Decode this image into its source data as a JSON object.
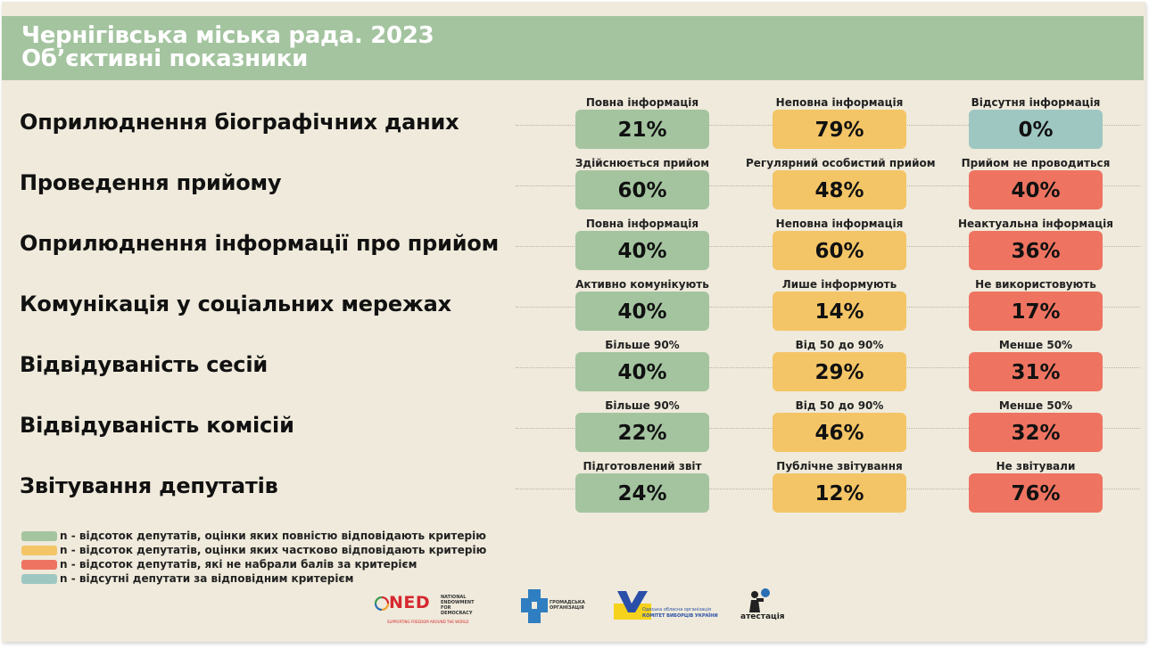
{
  "colors": {
    "full": "#a4c4a0",
    "partial": "#f4c566",
    "none": "#ee7461",
    "absent": "#9fc7c2"
  },
  "header": {
    "title_line1": "Чернігівська міська рада. 2023",
    "title_line2": "Об’єктивні показники"
  },
  "rows": [
    {
      "label": "Оприлюднення біографічних даних",
      "cells": [
        {
          "category": "Повна інформація",
          "value": "21%",
          "color": "full"
        },
        {
          "category": "Неповна інформація",
          "value": "79%",
          "color": "partial"
        },
        {
          "category": "Відсутня інформація",
          "value": "0%",
          "color": "absent"
        }
      ]
    },
    {
      "label": "Проведення прийому",
      "cells": [
        {
          "category": "Здійснюється прийом",
          "value": "60%",
          "color": "full"
        },
        {
          "category": "Регулярний особистий прийом",
          "value": "48%",
          "color": "partial"
        },
        {
          "category": "Прийом не проводиться",
          "value": "40%",
          "color": "none"
        }
      ]
    },
    {
      "label": "Оприлюднення інформації про прийом",
      "cells": [
        {
          "category": "Повна інформація",
          "value": "40%",
          "color": "full"
        },
        {
          "category": "Неповна інформація",
          "value": "60%",
          "color": "partial"
        },
        {
          "category": "Неактуальна інформація",
          "value": "36%",
          "color": "none"
        }
      ]
    },
    {
      "label": "Комунікація у соціальних мережах",
      "cells": [
        {
          "category": "Активно комунікують",
          "value": "40%",
          "color": "full"
        },
        {
          "category": "Лише інформують",
          "value": "14%",
          "color": "partial"
        },
        {
          "category": "Не використовують",
          "value": "17%",
          "color": "none"
        }
      ]
    },
    {
      "label": "Відвідуваність сесій",
      "cells": [
        {
          "category": "Більше 90%",
          "value": "40%",
          "color": "full"
        },
        {
          "category": "Від 50 до 90%",
          "value": "29%",
          "color": "partial"
        },
        {
          "category": "Менше 50%",
          "value": "31%",
          "color": "none"
        }
      ]
    },
    {
      "label": "Відвідуваність комісій",
      "cells": [
        {
          "category": "Більше 90%",
          "value": "22%",
          "color": "full"
        },
        {
          "category": "Від 50 до 90%",
          "value": "46%",
          "color": "partial"
        },
        {
          "category": "Менше 50%",
          "value": "32%",
          "color": "none"
        }
      ]
    },
    {
      "label": "Звітування депутатів",
      "cells": [
        {
          "category": "Підготовлений звіт",
          "value": "24%",
          "color": "full"
        },
        {
          "category": "Публічне звітування",
          "value": "12%",
          "color": "partial"
        },
        {
          "category": "Не звітували",
          "value": "76%",
          "color": "none"
        }
      ]
    }
  ],
  "legend": [
    {
      "text": "n - відсоток депутатів, оцінки яких повністю відповідають критерію",
      "color": "full"
    },
    {
      "text": "n - відсоток депутатів, оцінки яких частково відповідають критерію",
      "color": "partial"
    },
    {
      "text": "n - відсоток депутатів, які не набрали балів за критерієм",
      "color": "none"
    },
    {
      "text": "n - відсутні депутати за відповідним критерієм",
      "color": "absent"
    }
  ],
  "logos": {
    "ned": {
      "mark": "NED",
      "name": "NATIONAL ENDOWMENT FOR DEMOCRACY",
      "tagline": "SUPPORTING FREEDOM AROUND THE WORLD"
    },
    "civic": {
      "name": "ГРОМАДСЬКА ОРГАНІЗАЦІЯ"
    },
    "kvu": {
      "line1": "Одеська обласна організація",
      "line2": "КОМІТЕТ ВИБОРЦІВ УКРАЇНИ"
    },
    "atestatsiia": {
      "name": "атестація"
    }
  }
}
